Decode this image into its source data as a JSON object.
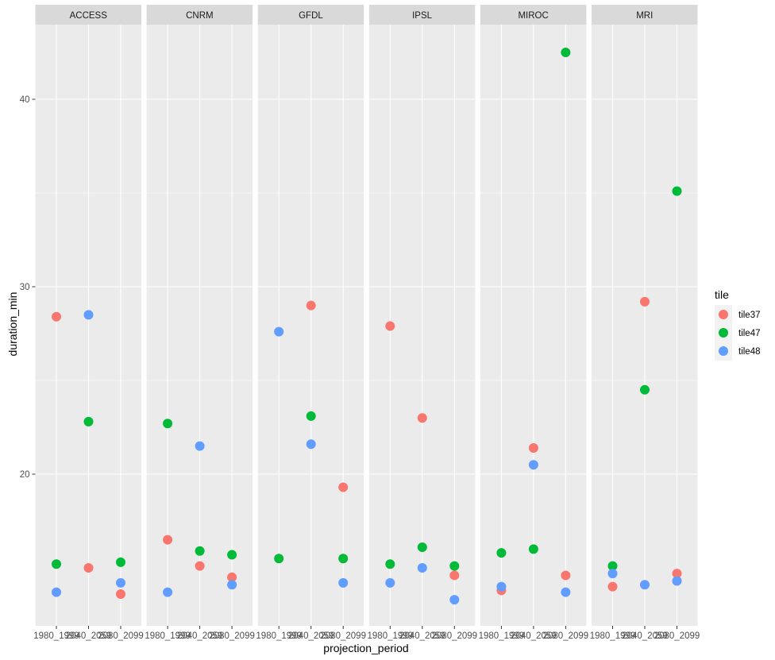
{
  "chart_data": {
    "type": "scatter",
    "facet_by": "model",
    "facets": [
      "ACCESS",
      "CNRM",
      "GFDL",
      "IPSL",
      "MIROC",
      "MRI"
    ],
    "categories": [
      "1980_1999",
      "2040_2059",
      "2080_2099"
    ],
    "xlabel": "projection_period",
    "ylabel": "duration_min",
    "ylim": [
      12,
      44
    ],
    "y_ticks": [
      20,
      30,
      40
    ],
    "y_tick_labels": [
      "20",
      "30",
      "40"
    ],
    "grid": true,
    "legend": {
      "title": "tile",
      "placement": "right",
      "entries": [
        "tile37",
        "tile47",
        "tile48"
      ]
    },
    "series": [
      {
        "name": "tile37",
        "color": "#F8766D",
        "values": {
          "ACCESS": [
            28.4,
            15.0,
            13.6
          ],
          "CNRM": [
            16.5,
            15.1,
            14.5
          ],
          "GFDL": [
            null,
            29.0,
            19.3
          ],
          "IPSL": [
            27.9,
            23.0,
            14.6
          ],
          "MIROC": [
            13.8,
            21.4,
            14.6
          ],
          "MRI": [
            14.0,
            29.2,
            14.7
          ]
        }
      },
      {
        "name": "tile47",
        "color": "#00BA38",
        "values": {
          "ACCESS": [
            15.2,
            22.8,
            15.3
          ],
          "CNRM": [
            22.7,
            15.9,
            15.7
          ],
          "GFDL": [
            15.5,
            23.1,
            15.5
          ],
          "IPSL": [
            15.2,
            16.1,
            15.1
          ],
          "MIROC": [
            15.8,
            16.0,
            42.5
          ],
          "MRI": [
            15.1,
            24.5,
            35.1
          ]
        }
      },
      {
        "name": "tile48",
        "color": "#619CFF",
        "values": {
          "ACCESS": [
            13.7,
            28.5,
            14.2
          ],
          "CNRM": [
            13.7,
            21.5,
            14.1
          ],
          "GFDL": [
            27.6,
            21.6,
            14.2
          ],
          "IPSL": [
            14.2,
            15.0,
            13.3
          ],
          "MIROC": [
            14.0,
            20.5,
            13.7
          ],
          "MRI": [
            14.7,
            14.1,
            14.3
          ]
        }
      }
    ]
  }
}
